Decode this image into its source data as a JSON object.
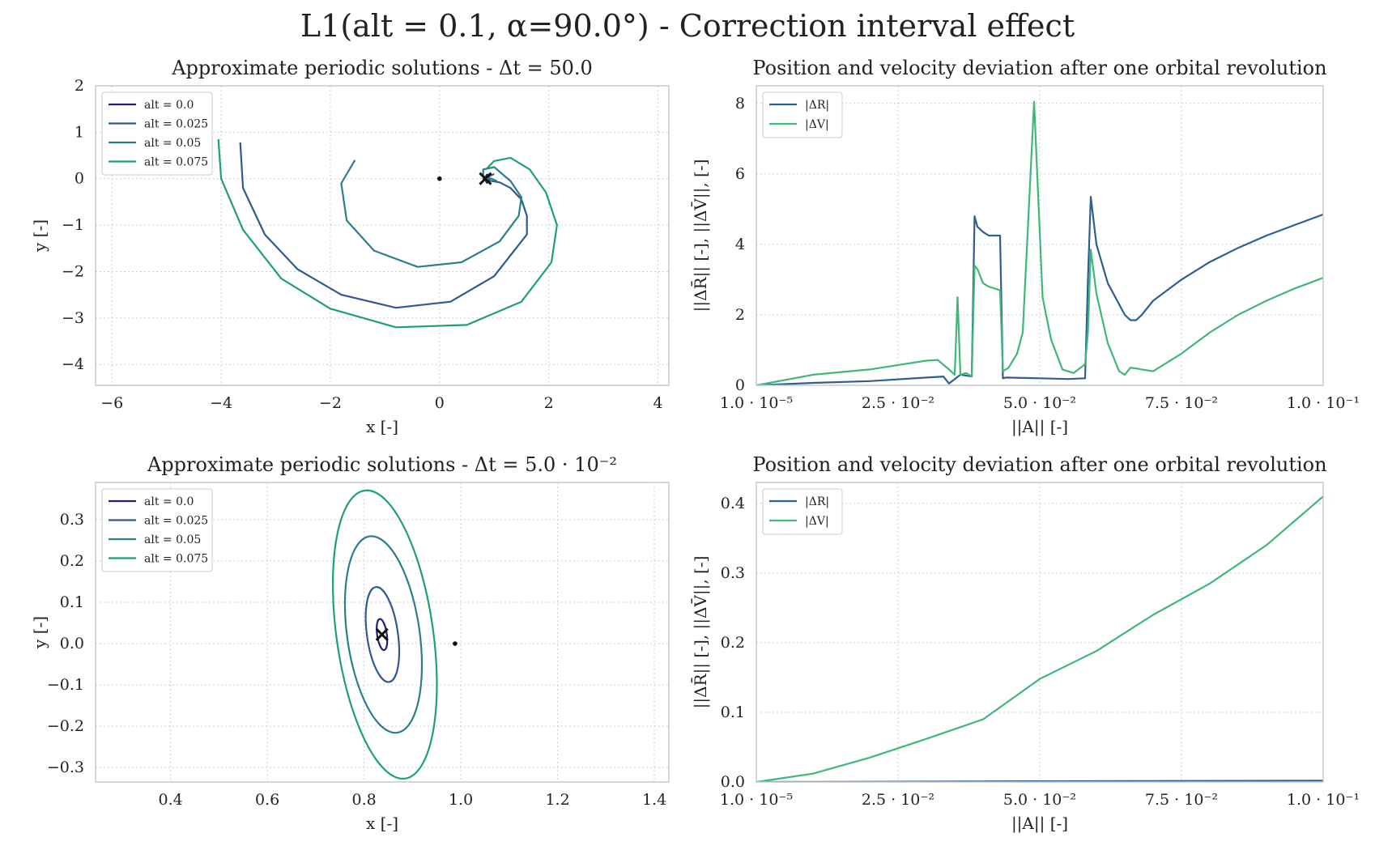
{
  "figure_title": "L1(alt = 0.1, α=90.0°) - Correction interval effect",
  "chart_data": [
    {
      "type": "line",
      "title": "Approximate periodic solutions - Δt = 50.0",
      "xlabel": "x [-]",
      "ylabel": "y [-]",
      "xlim": [
        -6.3,
        4.2
      ],
      "ylim": [
        -4.45,
        2.0
      ],
      "xticks": [
        -6,
        -4,
        -2,
        0,
        2,
        4
      ],
      "xtick_labels": [
        "−6",
        "−4",
        "−2",
        "0",
        "2",
        "4"
      ],
      "yticks": [
        -4,
        -3,
        -2,
        -1,
        0,
        1,
        2
      ],
      "ytick_labels": [
        "−4",
        "−3",
        "−2",
        "−1",
        "0",
        "1",
        "2"
      ],
      "grid": true,
      "legend_position": "top-left",
      "series": [
        {
          "name": "alt = 0.0",
          "color": "#2d1b6b",
          "x": [
            0.82,
            0.87,
            0.92,
            0.87,
            0.82
          ],
          "y": [
            0.0,
            0.09,
            0.0,
            -0.09,
            0.0
          ]
        },
        {
          "name": "alt = 0.025",
          "color": "#2f5a8f",
          "x": [
            -3.65,
            -3.6,
            -3.2,
            -2.6,
            -1.8,
            -0.8,
            0.2,
            1.0,
            1.6,
            1.6,
            1.5,
            1.3,
            1.1,
            0.95,
            0.85,
            0.8,
            0.9,
            1.0
          ],
          "y": [
            0.78,
            -0.2,
            -1.2,
            -1.95,
            -2.5,
            -2.78,
            -2.65,
            -2.1,
            -1.2,
            -0.8,
            -0.45,
            -0.2,
            -0.08,
            -0.05,
            -0.02,
            0.0,
            0.05,
            0.1
          ]
        },
        {
          "name": "alt = 0.05",
          "color": "#2a7f8c",
          "x": [
            -1.55,
            -1.8,
            -1.7,
            -1.2,
            -0.4,
            0.4,
            1.1,
            1.45,
            1.5,
            1.3,
            1.0,
            0.8,
            0.8,
            0.95,
            1.05
          ],
          "y": [
            0.4,
            -0.1,
            -0.9,
            -1.55,
            -1.9,
            -1.8,
            -1.35,
            -0.8,
            -0.4,
            -0.05,
            0.25,
            0.2,
            0.05,
            0.0,
            -0.05
          ]
        },
        {
          "name": "alt = 0.075",
          "color": "#1f9e7f",
          "x": [
            -4.05,
            -4.0,
            -3.6,
            -2.9,
            -2.0,
            -0.8,
            0.5,
            1.5,
            2.05,
            2.15,
            1.95,
            1.65,
            1.3,
            1.0,
            0.85
          ],
          "y": [
            0.85,
            0.0,
            -1.1,
            -2.15,
            -2.8,
            -3.2,
            -3.15,
            -2.65,
            -1.8,
            -1.0,
            -0.3,
            0.2,
            0.45,
            0.38,
            0.2
          ]
        }
      ],
      "markers": [
        {
          "kind": "x",
          "x": 0.84,
          "y": 0.0
        },
        {
          "kind": "dot",
          "x": 0.0,
          "y": 0.0
        }
      ]
    },
    {
      "type": "line",
      "title": "Position and velocity deviation after one orbital revolution",
      "xlabel": "||A|| [-]",
      "ylabel": "||ΔR̄|| [-], ||ΔV̄||, [-]",
      "xlim": [
        1e-05,
        0.1
      ],
      "ylim": [
        0,
        8.5
      ],
      "xticks": [
        1e-05,
        0.025,
        0.05,
        0.075,
        0.1
      ],
      "xtick_labels": [
        "1.0 · 10⁻⁵",
        "2.5 · 10⁻²",
        "5.0 · 10⁻²",
        "7.5 · 10⁻²",
        "1.0 · 10⁻¹"
      ],
      "yticks": [
        0,
        2,
        4,
        6,
        8
      ],
      "ytick_labels": [
        "0",
        "2",
        "4",
        "6",
        "8"
      ],
      "grid": true,
      "legend_position": "top-left",
      "series": [
        {
          "name": "|ΔR|",
          "color": "#2f5f8f",
          "x": [
            1e-05,
            0.01,
            0.02,
            0.03,
            0.033,
            0.034,
            0.036,
            0.038,
            0.0385,
            0.039,
            0.04,
            0.041,
            0.043,
            0.0435,
            0.044,
            0.05,
            0.055,
            0.058,
            0.0585,
            0.059,
            0.06,
            0.062,
            0.065,
            0.066,
            0.067,
            0.068,
            0.07,
            0.075,
            0.08,
            0.085,
            0.09,
            0.095,
            0.1
          ],
          "y": [
            0.0,
            0.07,
            0.12,
            0.22,
            0.25,
            0.05,
            0.3,
            0.25,
            4.8,
            4.5,
            4.35,
            4.25,
            4.25,
            0.2,
            0.22,
            0.2,
            0.18,
            0.2,
            3.0,
            5.35,
            4.0,
            2.9,
            2.0,
            1.85,
            1.85,
            2.0,
            2.4,
            3.0,
            3.5,
            3.9,
            4.25,
            4.55,
            4.85
          ]
        },
        {
          "name": "|ΔV|",
          "color": "#3fb77a",
          "x": [
            1e-05,
            0.01,
            0.02,
            0.03,
            0.032,
            0.034,
            0.035,
            0.0355,
            0.036,
            0.037,
            0.038,
            0.0385,
            0.039,
            0.04,
            0.041,
            0.043,
            0.0435,
            0.0445,
            0.046,
            0.047,
            0.049,
            0.0505,
            0.052,
            0.054,
            0.056,
            0.058,
            0.0585,
            0.059,
            0.06,
            0.062,
            0.064,
            0.065,
            0.066,
            0.067,
            0.068,
            0.07,
            0.075,
            0.08,
            0.085,
            0.09,
            0.095,
            0.1
          ],
          "y": [
            0.0,
            0.3,
            0.45,
            0.7,
            0.72,
            0.45,
            0.3,
            2.5,
            0.3,
            0.35,
            0.25,
            3.4,
            3.3,
            2.9,
            2.8,
            2.7,
            0.4,
            0.5,
            0.9,
            1.5,
            8.05,
            2.5,
            1.3,
            0.45,
            0.35,
            0.6,
            1.5,
            3.85,
            2.6,
            1.2,
            0.4,
            0.3,
            0.5,
            0.48,
            0.45,
            0.4,
            0.9,
            1.5,
            2.0,
            2.4,
            2.75,
            3.05
          ]
        }
      ]
    },
    {
      "type": "line",
      "title": "Approximate periodic solutions - Δt = 5.0 · 10⁻²",
      "xlabel": "x [-]",
      "ylabel": "y [-]",
      "xlim": [
        0.245,
        1.43
      ],
      "ylim": [
        -0.335,
        0.39
      ],
      "xticks": [
        0.4,
        0.6,
        0.8,
        1.0,
        1.2,
        1.4
      ],
      "xtick_labels": [
        "0.4",
        "0.6",
        "0.8",
        "1.0",
        "1.2",
        "1.4"
      ],
      "yticks": [
        -0.3,
        -0.2,
        -0.1,
        0.0,
        0.1,
        0.2,
        0.3
      ],
      "ytick_labels": [
        "−0.3",
        "−0.2",
        "−0.1",
        "0.0",
        "0.1",
        "0.2",
        "0.3"
      ],
      "grid": true,
      "legend_position": "top-left",
      "series": [
        {
          "name": "alt = 0.0",
          "color": "#2d1b6b",
          "ellipse": {
            "cx": 0.837,
            "cy": 0.022,
            "rx": 0.01,
            "ry": 0.038
          }
        },
        {
          "name": "alt = 0.025",
          "color": "#2f5a8f",
          "ellipse": {
            "cx": 0.838,
            "cy": 0.022,
            "rx": 0.032,
            "ry": 0.116
          }
        },
        {
          "name": "alt = 0.05",
          "color": "#2a7f8c",
          "ellipse": {
            "cx": 0.84,
            "cy": 0.022,
            "rx": 0.075,
            "ry": 0.24
          }
        },
        {
          "name": "alt = 0.075",
          "color": "#1f9e7f",
          "ellipse": {
            "cx": 0.843,
            "cy": 0.022,
            "rx": 0.1,
            "ry": 0.352
          }
        }
      ],
      "markers": [
        {
          "kind": "x",
          "x": 0.837,
          "y": 0.022
        },
        {
          "kind": "dot",
          "x": 0.988,
          "y": 0.0
        }
      ]
    },
    {
      "type": "line",
      "title": "Position and velocity deviation after one orbital revolution",
      "xlabel": "||A|| [-]",
      "ylabel": "||ΔR̄|| [-], ||ΔV̄||, [-]",
      "xlim": [
        1e-05,
        0.1
      ],
      "ylim": [
        0,
        0.43
      ],
      "xticks": [
        1e-05,
        0.025,
        0.05,
        0.075,
        0.1
      ],
      "xtick_labels": [
        "1.0 · 10⁻⁵",
        "2.5 · 10⁻²",
        "5.0 · 10⁻²",
        "7.5 · 10⁻²",
        "1.0 · 10⁻¹"
      ],
      "yticks": [
        0.0,
        0.1,
        0.2,
        0.3,
        0.4
      ],
      "ytick_labels": [
        "0.0",
        "0.1",
        "0.2",
        "0.3",
        "0.4"
      ],
      "grid": true,
      "legend_position": "top-left",
      "series": [
        {
          "name": "|ΔR|",
          "color": "#2f5f8f",
          "x": [
            1e-05,
            0.025,
            0.05,
            0.075,
            0.1
          ],
          "y": [
            0.0,
            0.0005,
            0.001,
            0.0015,
            0.002
          ]
        },
        {
          "name": "|ΔV|",
          "color": "#3fb77a",
          "x": [
            1e-05,
            0.01,
            0.02,
            0.03,
            0.04,
            0.05,
            0.06,
            0.07,
            0.08,
            0.09,
            0.1
          ],
          "y": [
            0.0,
            0.012,
            0.035,
            0.062,
            0.09,
            0.148,
            0.188,
            0.24,
            0.285,
            0.34,
            0.41
          ]
        }
      ]
    }
  ]
}
